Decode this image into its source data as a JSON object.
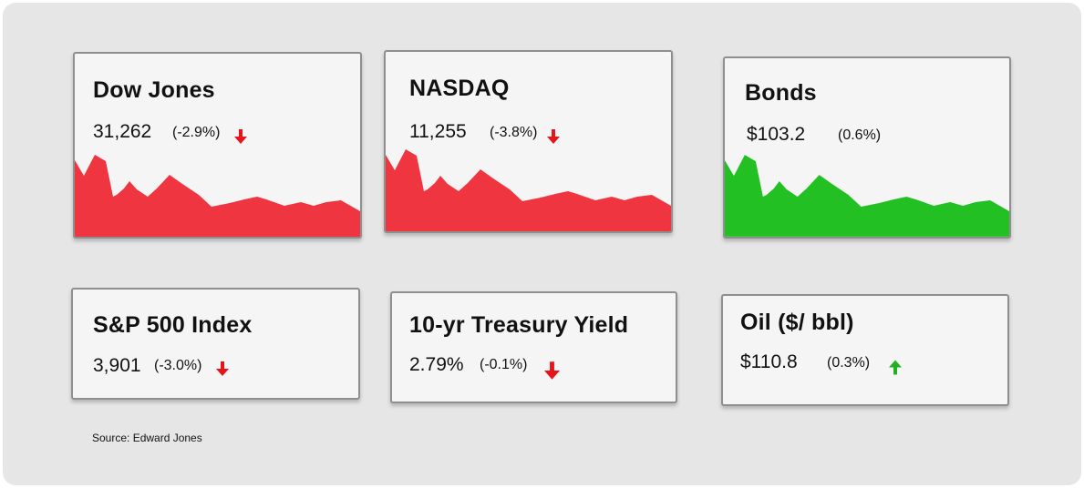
{
  "colors": {
    "down": "#ee3540",
    "up": "#22c022",
    "arrow_down": "#e8141b",
    "arrow_up": "#21b021"
  },
  "cards": [
    {
      "name": "Dow Jones",
      "value": "31,262",
      "change": "(-2.9%)",
      "trend": "down",
      "icon": "arrow-down-icon"
    },
    {
      "name": "NASDAQ",
      "value": "11,255",
      "change": "(-3.8%)",
      "trend": "down",
      "icon": "arrow-down-icon"
    },
    {
      "name": "Bonds",
      "value": "$103.2",
      "change": "(0.6%)",
      "trend": "up"
    },
    {
      "name": "S&P 500 Index",
      "value": "3,901",
      "change": "(-3.0%)",
      "trend": "down",
      "icon": "arrow-down-icon"
    },
    {
      "name": "10-yr Treasury Yield",
      "value": "2.79%",
      "change": "(-0.1%)",
      "trend": "down",
      "icon": "arrow-down-icon"
    },
    {
      "name": "Oil ($/ bbl)",
      "value": "$110.8",
      "change": "(0.3%)",
      "trend": "up",
      "icon": "arrow-up-icon"
    }
  ],
  "source": "Source: Edward Jones"
}
